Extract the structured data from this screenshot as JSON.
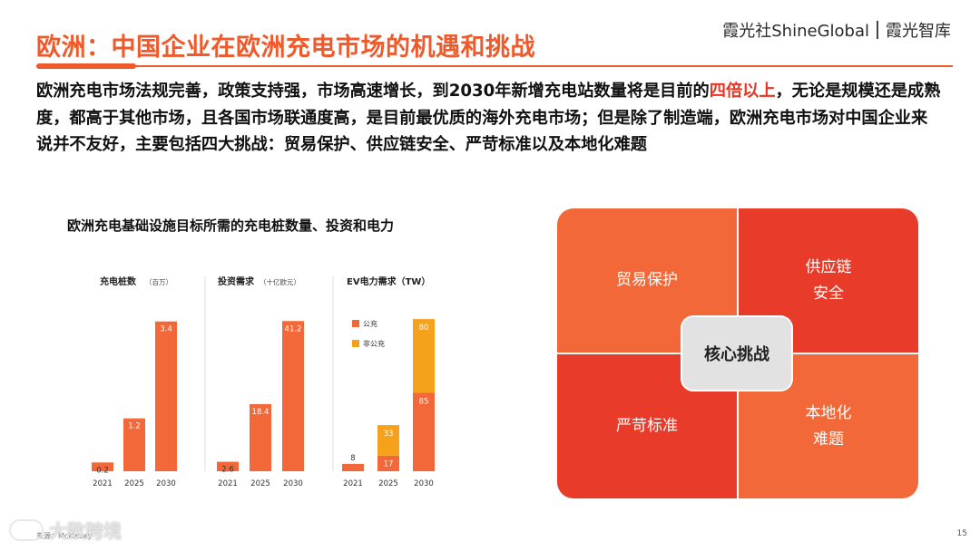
{
  "header": {
    "title": "欧洲：中国企业在欧洲充电市场的机遇和挑战",
    "brand_left": "霞光社ShineGlobal",
    "brand_right": "霞光智库"
  },
  "intro": {
    "part1": "欧洲充电市场法规完善，政策支持强，市场高速增长，到2030年新增充电站数量将是目前的",
    "highlight": "四倍以上",
    "part2": "，无论是规模还是成熟度，都高于其他市场，且各国市场联通度高，是目前最优质的海外充电市场；但是除了制造端，欧洲充电市场对中国企业来说并不友好，主要包括四大挑战：贸易保护、供应链安全、严苛标准以及本地化难题"
  },
  "chart_section": {
    "title": "欧洲充电基础设施目标所需的充电桩数量、投资和电力"
  },
  "chart_data": [
    {
      "type": "bar",
      "title": "充电桩数",
      "unit": "（百万）",
      "categories": [
        "2021",
        "2025",
        "2030"
      ],
      "values": [
        0.2,
        1.2,
        3.4
      ],
      "labels": [
        "0.2",
        "1.2",
        "3.4"
      ]
    },
    {
      "type": "bar",
      "title": "投资需求",
      "unit": "（十亿欧元）",
      "categories": [
        "2021",
        "2025",
        "2030"
      ],
      "values": [
        2.6,
        18.4,
        41.2
      ],
      "labels": [
        "2.6",
        "18.4",
        "41.2"
      ]
    },
    {
      "type": "bar",
      "stacked": true,
      "title": "EV电力需求（TW）",
      "categories": [
        "2021",
        "2025",
        "2030"
      ],
      "series": [
        {
          "name": "公充",
          "values": [
            8,
            17,
            85
          ],
          "color": "#f26838"
        },
        {
          "name": "非公充",
          "values": [
            0,
            33,
            80
          ],
          "color": "#f5a11a"
        }
      ],
      "labels": [
        "8",
        "17",
        "33",
        "85",
        "80"
      ]
    }
  ],
  "source": "来源：McKinsey",
  "watermark": "大数跨境",
  "page_number": "15",
  "challenges": {
    "center": "核心挑战",
    "top_left": [
      "贸易保护"
    ],
    "top_right": [
      "供应链",
      "安全"
    ],
    "bottom_left": [
      "严苛标准"
    ],
    "bottom_right": [
      "本地化",
      "难题"
    ]
  },
  "colors": {
    "accent": "#ee5a2c",
    "highlight": "#e93323",
    "bar": "#f26838",
    "bar_secondary": "#f5a11a",
    "cell_dark": "#e93b2a",
    "cell_light": "#f26838"
  }
}
